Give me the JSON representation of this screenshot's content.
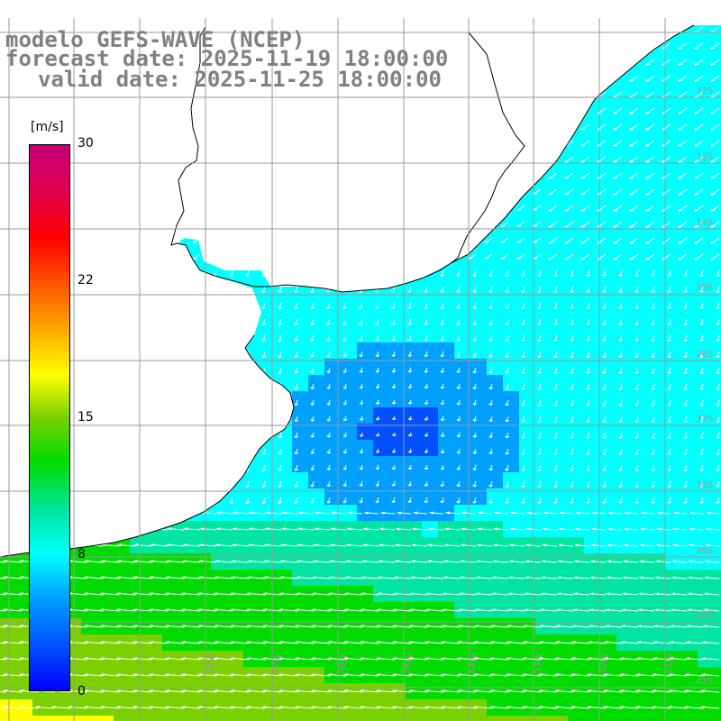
{
  "title": {
    "model": "modelo GEFS-WAVE (NCEP)",
    "forecast": "forecast date: 2025-11-19 18:00:00",
    "valid": "valid date: 2025-11-25 18:00:00"
  },
  "colorbar": {
    "unit": "[m/s]",
    "ticks": [
      "30",
      "22",
      "15",
      "8",
      "0"
    ],
    "colors": [
      "#0000ff",
      "#0050ff",
      "#00a0ff",
      "#00ffff",
      "#00e6a0",
      "#00dc00",
      "#7ad000",
      "#ffff00",
      "#ffa000",
      "#ff5000",
      "#ff0000",
      "#e00050",
      "#c80078"
    ]
  },
  "map_labels": {
    "lat": [
      "32S",
      "33S",
      "34S",
      "35S",
      "36S",
      "37S",
      "38S",
      "39S",
      "40S",
      "41S"
    ],
    "lon": [
      "59W",
      "58W",
      "57W",
      "56W",
      "55W",
      "54W",
      "53W",
      "52W",
      "51W"
    ]
  },
  "colors": {
    "land": "#ffffff",
    "grid": "#9a9a9a",
    "arrow": "#ffffff",
    "coast": "#000000"
  }
}
